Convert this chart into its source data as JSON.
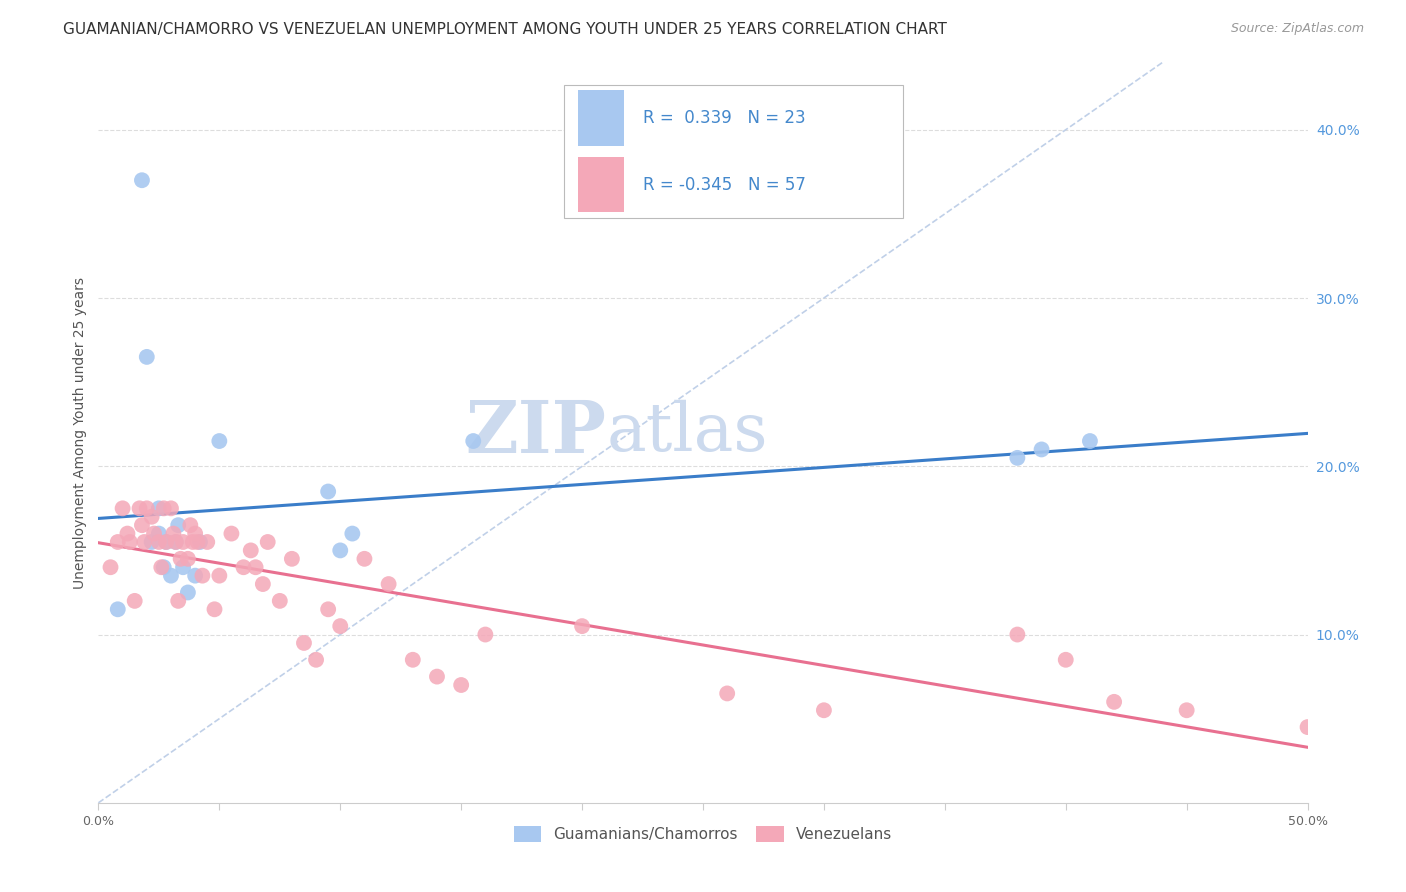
{
  "title": "GUAMANIAN/CHAMORRO VS VENEZUELAN UNEMPLOYMENT AMONG YOUTH UNDER 25 YEARS CORRELATION CHART",
  "source": "Source: ZipAtlas.com",
  "ylabel": "Unemployment Among Youth under 25 years",
  "xlim": [
    0.0,
    0.5
  ],
  "ylim": [
    0.0,
    0.44
  ],
  "xtick_vals": [
    0.0,
    0.05,
    0.1,
    0.15,
    0.2,
    0.25,
    0.3,
    0.35,
    0.4,
    0.45,
    0.5
  ],
  "xtick_labels": [
    "0.0%",
    "",
    "",
    "",
    "",
    "",
    "",
    "",
    "",
    "",
    "50.0%"
  ],
  "yticks_right": [
    0.1,
    0.2,
    0.3,
    0.4
  ],
  "ytick_right_labels": [
    "10.0%",
    "20.0%",
    "30.0%",
    "40.0%"
  ],
  "guamanian_color": "#a8c8f0",
  "venezuelan_color": "#f4a8b8",
  "guamanian_line_color": "#3a7dc9",
  "venezuelan_line_color": "#e87090",
  "dashed_line_color": "#c0d0e8",
  "watermark_zip_color": "#ccdaee",
  "watermark_atlas_color": "#ccdaee",
  "legend_r_guamanian": "0.339",
  "legend_n_guamanian": "23",
  "legend_r_venezuelan": "-0.345",
  "legend_n_venezuelan": "57",
  "legend_label_guamanian": "Guamanians/Chamorros",
  "legend_label_venezuelan": "Venezuelans",
  "guamanian_x": [
    0.008,
    0.018,
    0.02,
    0.022,
    0.025,
    0.025,
    0.027,
    0.028,
    0.03,
    0.032,
    0.033,
    0.035,
    0.037,
    0.04,
    0.042,
    0.05,
    0.095,
    0.1,
    0.105,
    0.155,
    0.38,
    0.39,
    0.41
  ],
  "guamanian_y": [
    0.115,
    0.37,
    0.265,
    0.155,
    0.16,
    0.175,
    0.14,
    0.155,
    0.135,
    0.155,
    0.165,
    0.14,
    0.125,
    0.135,
    0.155,
    0.215,
    0.185,
    0.15,
    0.16,
    0.215,
    0.205,
    0.21,
    0.215
  ],
  "venezuelan_x": [
    0.005,
    0.008,
    0.01,
    0.012,
    0.013,
    0.015,
    0.017,
    0.018,
    0.019,
    0.02,
    0.022,
    0.023,
    0.025,
    0.026,
    0.027,
    0.028,
    0.03,
    0.031,
    0.032,
    0.033,
    0.034,
    0.035,
    0.037,
    0.038,
    0.039,
    0.04,
    0.041,
    0.043,
    0.045,
    0.048,
    0.05,
    0.055,
    0.06,
    0.063,
    0.065,
    0.068,
    0.07,
    0.075,
    0.08,
    0.085,
    0.09,
    0.095,
    0.1,
    0.11,
    0.12,
    0.13,
    0.14,
    0.15,
    0.16,
    0.2,
    0.26,
    0.3,
    0.38,
    0.4,
    0.42,
    0.45,
    0.5
  ],
  "venezuelan_y": [
    0.14,
    0.155,
    0.175,
    0.16,
    0.155,
    0.12,
    0.175,
    0.165,
    0.155,
    0.175,
    0.17,
    0.16,
    0.155,
    0.14,
    0.175,
    0.155,
    0.175,
    0.16,
    0.155,
    0.12,
    0.145,
    0.155,
    0.145,
    0.165,
    0.155,
    0.16,
    0.155,
    0.135,
    0.155,
    0.115,
    0.135,
    0.16,
    0.14,
    0.15,
    0.14,
    0.13,
    0.155,
    0.12,
    0.145,
    0.095,
    0.085,
    0.115,
    0.105,
    0.145,
    0.13,
    0.085,
    0.075,
    0.07,
    0.1,
    0.105,
    0.065,
    0.055,
    0.1,
    0.085,
    0.06,
    0.055,
    0.045
  ],
  "title_fontsize": 11,
  "source_fontsize": 9,
  "axis_label_fontsize": 10,
  "tick_fontsize": 9,
  "legend_fontsize": 12,
  "watermark_fontsize": 52,
  "grid_color": "#dddddd",
  "spine_color": "#cccccc"
}
